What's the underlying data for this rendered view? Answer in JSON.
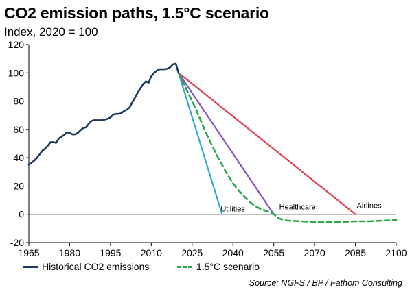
{
  "title": "CO2 emission paths, 1.5°C scenario",
  "subtitle": "Index, 2020 = 100",
  "source": "Source: NGFS / BP / Fathom Consulting",
  "colors": {
    "historical": "#1c3a5e",
    "scenario": "#2aa84a",
    "utilities": "#2ea6d9",
    "healthcare": "#8a4fbf",
    "airlines": "#e0404f"
  },
  "chart_data": {
    "type": "line",
    "xlim": [
      1965,
      2100
    ],
    "ylim": [
      -20,
      120
    ],
    "x_ticks": [
      1965,
      1980,
      1995,
      2010,
      2025,
      2040,
      2055,
      2070,
      2085,
      2100
    ],
    "y_ticks": [
      -20,
      0,
      20,
      40,
      60,
      80,
      100,
      120
    ],
    "legend": [
      "Historical CO2 emissions",
      "1.5°C scenario"
    ],
    "annotations": [
      "Utilities",
      "Healthcare",
      "Airlines"
    ],
    "series": [
      {
        "name": "Historical CO2 emissions",
        "style": "solid",
        "x": [
          1965,
          1966,
          1967,
          1968,
          1969,
          1970,
          1971,
          1972,
          1973,
          1974,
          1975,
          1976,
          1977,
          1978,
          1979,
          1980,
          1981,
          1982,
          1983,
          1984,
          1985,
          1986,
          1987,
          1988,
          1989,
          1990,
          1991,
          1992,
          1993,
          1994,
          1995,
          1996,
          1997,
          1998,
          1999,
          2000,
          2001,
          2002,
          2003,
          2004,
          2005,
          2006,
          2007,
          2008,
          2009,
          2010,
          2011,
          2012,
          2013,
          2014,
          2015,
          2016,
          2017,
          2018,
          2019,
          2020
        ],
        "y": [
          35,
          36.5,
          38,
          40,
          42.5,
          45,
          46.5,
          48.5,
          51,
          51,
          50.5,
          53.5,
          55,
          56,
          58,
          57.5,
          56.5,
          56.5,
          57.5,
          59.5,
          61,
          61.5,
          64,
          66,
          66.5,
          66.5,
          66.5,
          66.5,
          67,
          67.5,
          68.5,
          70.5,
          71,
          71,
          71.5,
          73,
          74,
          75.5,
          79,
          82.5,
          86,
          89,
          92,
          94,
          93,
          97.5,
          100,
          101.5,
          102.5,
          102.5,
          102.5,
          103,
          104,
          106,
          106.5,
          100
        ]
      },
      {
        "name": "1.5°C scenario",
        "style": "dashed",
        "x": [
          2020,
          2022,
          2024,
          2026,
          2028,
          2030,
          2032,
          2034,
          2036,
          2038,
          2040,
          2042,
          2044,
          2046,
          2048,
          2050,
          2052,
          2054,
          2055,
          2057,
          2060,
          2065,
          2070,
          2075,
          2080,
          2085,
          2090,
          2095,
          2100
        ],
        "y": [
          100,
          92,
          84,
          76,
          67,
          58,
          50,
          42,
          35,
          28,
          22,
          17,
          13,
          9,
          6,
          4,
          2.5,
          1,
          0,
          -3,
          -4.5,
          -5,
          -5.5,
          -5.5,
          -5.5,
          -5,
          -5,
          -4.5,
          -4
        ]
      },
      {
        "name": "Utilities",
        "style": "solid",
        "x": [
          2020,
          2036
        ],
        "y": [
          100,
          0
        ]
      },
      {
        "name": "Healthcare",
        "style": "solid",
        "x": [
          2020,
          2055
        ],
        "y": [
          100,
          0
        ]
      },
      {
        "name": "Airlines",
        "style": "solid",
        "x": [
          2020,
          2085
        ],
        "y": [
          100,
          0
        ]
      }
    ]
  }
}
